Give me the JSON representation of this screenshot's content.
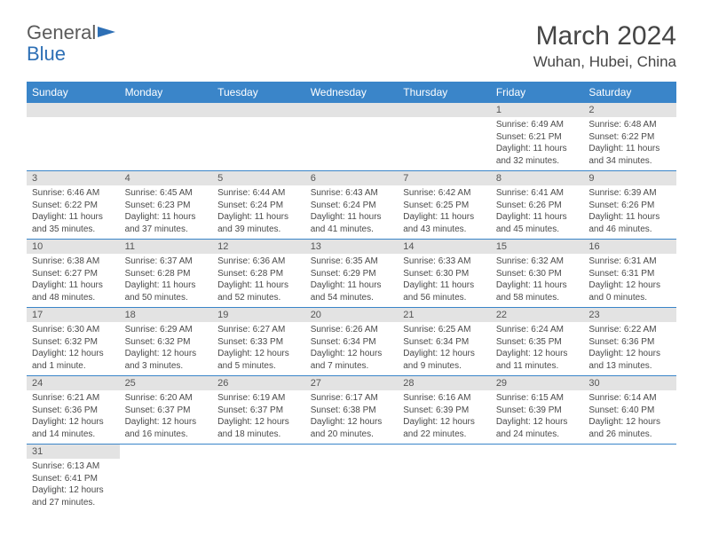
{
  "logo": {
    "text1": "General",
    "text2": "Blue"
  },
  "title": "March 2024",
  "location": "Wuhan, Hubei, China",
  "colors": {
    "header_bg": "#3a85c9",
    "header_text": "#ffffff",
    "daynum_bg": "#e3e3e3",
    "border": "#3a85c9",
    "text": "#4a4a4a",
    "title_text": "#454545",
    "logo_gray": "#5b5b5b",
    "logo_blue": "#2d6fb5"
  },
  "daysOfWeek": [
    "Sunday",
    "Monday",
    "Tuesday",
    "Wednesday",
    "Thursday",
    "Friday",
    "Saturday"
  ],
  "weeks": [
    [
      null,
      null,
      null,
      null,
      null,
      {
        "n": "1",
        "sr": "Sunrise: 6:49 AM",
        "ss": "Sunset: 6:21 PM",
        "dl": "Daylight: 11 hours and 32 minutes."
      },
      {
        "n": "2",
        "sr": "Sunrise: 6:48 AM",
        "ss": "Sunset: 6:22 PM",
        "dl": "Daylight: 11 hours and 34 minutes."
      }
    ],
    [
      {
        "n": "3",
        "sr": "Sunrise: 6:46 AM",
        "ss": "Sunset: 6:22 PM",
        "dl": "Daylight: 11 hours and 35 minutes."
      },
      {
        "n": "4",
        "sr": "Sunrise: 6:45 AM",
        "ss": "Sunset: 6:23 PM",
        "dl": "Daylight: 11 hours and 37 minutes."
      },
      {
        "n": "5",
        "sr": "Sunrise: 6:44 AM",
        "ss": "Sunset: 6:24 PM",
        "dl": "Daylight: 11 hours and 39 minutes."
      },
      {
        "n": "6",
        "sr": "Sunrise: 6:43 AM",
        "ss": "Sunset: 6:24 PM",
        "dl": "Daylight: 11 hours and 41 minutes."
      },
      {
        "n": "7",
        "sr": "Sunrise: 6:42 AM",
        "ss": "Sunset: 6:25 PM",
        "dl": "Daylight: 11 hours and 43 minutes."
      },
      {
        "n": "8",
        "sr": "Sunrise: 6:41 AM",
        "ss": "Sunset: 6:26 PM",
        "dl": "Daylight: 11 hours and 45 minutes."
      },
      {
        "n": "9",
        "sr": "Sunrise: 6:39 AM",
        "ss": "Sunset: 6:26 PM",
        "dl": "Daylight: 11 hours and 46 minutes."
      }
    ],
    [
      {
        "n": "10",
        "sr": "Sunrise: 6:38 AM",
        "ss": "Sunset: 6:27 PM",
        "dl": "Daylight: 11 hours and 48 minutes."
      },
      {
        "n": "11",
        "sr": "Sunrise: 6:37 AM",
        "ss": "Sunset: 6:28 PM",
        "dl": "Daylight: 11 hours and 50 minutes."
      },
      {
        "n": "12",
        "sr": "Sunrise: 6:36 AM",
        "ss": "Sunset: 6:28 PM",
        "dl": "Daylight: 11 hours and 52 minutes."
      },
      {
        "n": "13",
        "sr": "Sunrise: 6:35 AM",
        "ss": "Sunset: 6:29 PM",
        "dl": "Daylight: 11 hours and 54 minutes."
      },
      {
        "n": "14",
        "sr": "Sunrise: 6:33 AM",
        "ss": "Sunset: 6:30 PM",
        "dl": "Daylight: 11 hours and 56 minutes."
      },
      {
        "n": "15",
        "sr": "Sunrise: 6:32 AM",
        "ss": "Sunset: 6:30 PM",
        "dl": "Daylight: 11 hours and 58 minutes."
      },
      {
        "n": "16",
        "sr": "Sunrise: 6:31 AM",
        "ss": "Sunset: 6:31 PM",
        "dl": "Daylight: 12 hours and 0 minutes."
      }
    ],
    [
      {
        "n": "17",
        "sr": "Sunrise: 6:30 AM",
        "ss": "Sunset: 6:32 PM",
        "dl": "Daylight: 12 hours and 1 minute."
      },
      {
        "n": "18",
        "sr": "Sunrise: 6:29 AM",
        "ss": "Sunset: 6:32 PM",
        "dl": "Daylight: 12 hours and 3 minutes."
      },
      {
        "n": "19",
        "sr": "Sunrise: 6:27 AM",
        "ss": "Sunset: 6:33 PM",
        "dl": "Daylight: 12 hours and 5 minutes."
      },
      {
        "n": "20",
        "sr": "Sunrise: 6:26 AM",
        "ss": "Sunset: 6:34 PM",
        "dl": "Daylight: 12 hours and 7 minutes."
      },
      {
        "n": "21",
        "sr": "Sunrise: 6:25 AM",
        "ss": "Sunset: 6:34 PM",
        "dl": "Daylight: 12 hours and 9 minutes."
      },
      {
        "n": "22",
        "sr": "Sunrise: 6:24 AM",
        "ss": "Sunset: 6:35 PM",
        "dl": "Daylight: 12 hours and 11 minutes."
      },
      {
        "n": "23",
        "sr": "Sunrise: 6:22 AM",
        "ss": "Sunset: 6:36 PM",
        "dl": "Daylight: 12 hours and 13 minutes."
      }
    ],
    [
      {
        "n": "24",
        "sr": "Sunrise: 6:21 AM",
        "ss": "Sunset: 6:36 PM",
        "dl": "Daylight: 12 hours and 14 minutes."
      },
      {
        "n": "25",
        "sr": "Sunrise: 6:20 AM",
        "ss": "Sunset: 6:37 PM",
        "dl": "Daylight: 12 hours and 16 minutes."
      },
      {
        "n": "26",
        "sr": "Sunrise: 6:19 AM",
        "ss": "Sunset: 6:37 PM",
        "dl": "Daylight: 12 hours and 18 minutes."
      },
      {
        "n": "27",
        "sr": "Sunrise: 6:17 AM",
        "ss": "Sunset: 6:38 PM",
        "dl": "Daylight: 12 hours and 20 minutes."
      },
      {
        "n": "28",
        "sr": "Sunrise: 6:16 AM",
        "ss": "Sunset: 6:39 PM",
        "dl": "Daylight: 12 hours and 22 minutes."
      },
      {
        "n": "29",
        "sr": "Sunrise: 6:15 AM",
        "ss": "Sunset: 6:39 PM",
        "dl": "Daylight: 12 hours and 24 minutes."
      },
      {
        "n": "30",
        "sr": "Sunrise: 6:14 AM",
        "ss": "Sunset: 6:40 PM",
        "dl": "Daylight: 12 hours and 26 minutes."
      }
    ],
    [
      {
        "n": "31",
        "sr": "Sunrise: 6:13 AM",
        "ss": "Sunset: 6:41 PM",
        "dl": "Daylight: 12 hours and 27 minutes."
      },
      null,
      null,
      null,
      null,
      null,
      null
    ]
  ]
}
